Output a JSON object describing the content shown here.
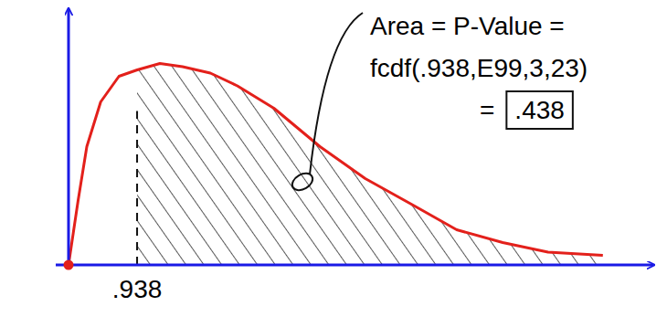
{
  "chart_data": {
    "type": "area",
    "x": [
      0,
      0.13,
      0.25,
      0.44,
      0.69,
      0.94,
      1.25,
      1.56,
      1.94,
      2.31,
      2.81,
      3.44,
      4.06,
      4.69,
      5.31,
      5.94,
      6.56,
      7.31
    ],
    "values": [
      0,
      0.2,
      0.37,
      0.51,
      0.59,
      0.61,
      0.63,
      0.62,
      0.6,
      0.56,
      0.49,
      0.37,
      0.27,
      0.19,
      0.11,
      0.07,
      0.04,
      0.03
    ],
    "color": "#e3201b",
    "xlim": [
      0,
      8
    ],
    "ylim": [
      0,
      0.8
    ],
    "xticks": [
      {
        "value": 0.938,
        "label": ".938"
      }
    ],
    "tick_labels": "x",
    "grid": false,
    "annotation": {
      "lines": [
        "Area = P-Value =",
        "fcdf(.938,E99,3,23)"
      ],
      "result_prefix": "=",
      "result": ".438"
    }
  }
}
